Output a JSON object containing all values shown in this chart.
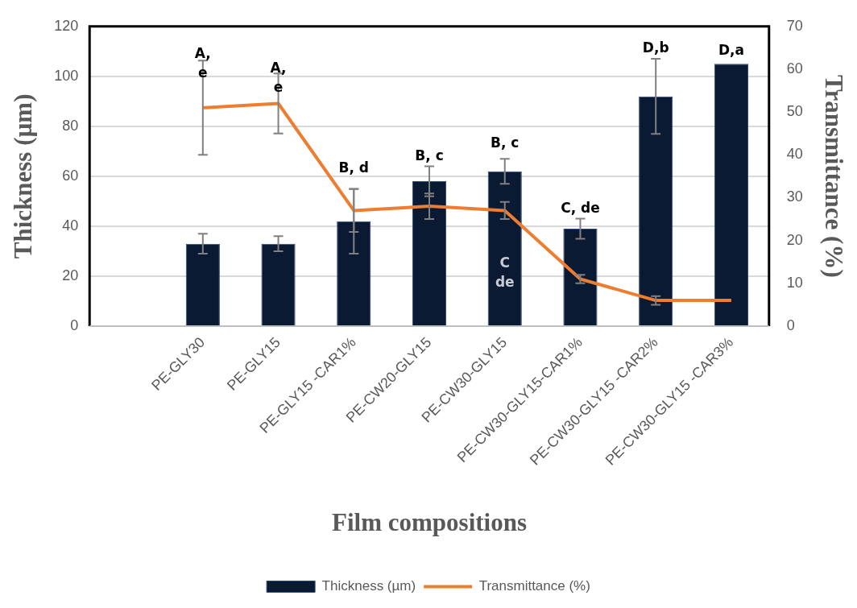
{
  "chart_data": {
    "type": "bar",
    "categories": [
      null,
      "PE-GLY30",
      "PE-GLY15",
      "PE-GLY15 -CAR1%",
      "PE-CW20-GLY15",
      "PE-CW30-GLY15",
      "PE-CW30-GLY15-CAR1%",
      "PE-CW30-GLY15 -CAR2%",
      "PE-CW30-GLY15 -CAR3%"
    ],
    "series": [
      {
        "name": "Thickness (µm)",
        "color": "#0b1a33",
        "values": [
          null,
          33,
          33,
          42,
          58,
          62,
          39,
          92,
          105
        ],
        "errors": [
          null,
          4,
          3,
          13,
          6,
          5,
          4,
          15,
          null
        ]
      },
      {
        "name": "Transmittance (%)",
        "type": "line",
        "axis": "y2",
        "color": "#ed7d31",
        "values": [
          null,
          51,
          52,
          27,
          28,
          27,
          11,
          6,
          6
        ],
        "errors": [
          null,
          11,
          7,
          5,
          3,
          2,
          1,
          1,
          null
        ]
      }
    ],
    "xlabel": "Film compositions",
    "ylabel": "Thickness (µm)",
    "y2label": "Transmittance (%)",
    "ylim": [
      0,
      120
    ],
    "yticks": [
      0,
      20,
      40,
      60,
      80,
      100,
      120
    ],
    "y2lim": [
      0,
      70
    ],
    "y2ticks": [
      0,
      10,
      20,
      30,
      40,
      50,
      60,
      70
    ],
    "grid": "y",
    "legend": "bottom",
    "marker": "none",
    "line_style": "solid",
    "annotations": [
      "A,\ne",
      "A,\ne",
      "B, d",
      "B, c",
      "B, c",
      "C\nde",
      "C, de",
      "D,b",
      "D,a"
    ]
  }
}
